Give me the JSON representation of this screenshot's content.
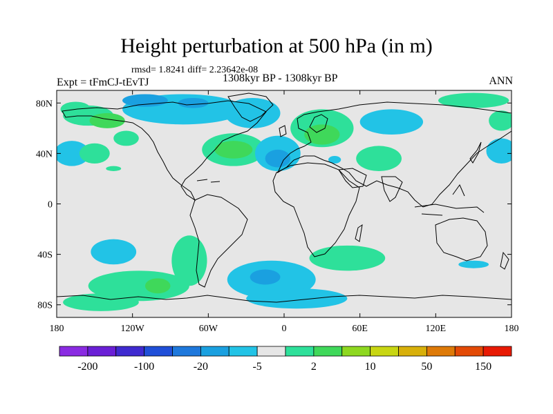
{
  "title": "Height perturbation at 500 hPa (in m)",
  "stats": "rmsd= 1.8241 diff= 2.23642e-08",
  "experiment": "Expt = tFmCJ-tEvTJ",
  "period": "1308kyr BP - 1308kyr BP",
  "season": "ANN",
  "x_ticks": [
    {
      "lon": -180,
      "label": "180"
    },
    {
      "lon": -120,
      "label": "120W"
    },
    {
      "lon": -60,
      "label": "60W"
    },
    {
      "lon": 0,
      "label": "0"
    },
    {
      "lon": 60,
      "label": "60E"
    },
    {
      "lon": 120,
      "label": "120E"
    },
    {
      "lon": 180,
      "label": "180"
    }
  ],
  "y_ticks": [
    {
      "lat": 80,
      "label": "80N"
    },
    {
      "lat": 40,
      "label": "40N"
    },
    {
      "lat": 0,
      "label": "0"
    },
    {
      "lat": -40,
      "label": "40S"
    },
    {
      "lat": -80,
      "label": "80S"
    }
  ],
  "colorbar": {
    "colors": [
      "#8a2be2",
      "#6a1fd6",
      "#3f2ad0",
      "#1f4fd8",
      "#1e78dc",
      "#1aa0e0",
      "#22c3e6",
      "#e6e6e6",
      "#2ee09a",
      "#3fd85a",
      "#8ed820",
      "#c8d612",
      "#d8b00a",
      "#de7a08",
      "#e34a06",
      "#e81a04"
    ],
    "labels": [
      {
        "after_box": 1,
        "text": "-200"
      },
      {
        "after_box": 3,
        "text": "-100"
      },
      {
        "after_box": 5,
        "text": "-20"
      },
      {
        "after_box": 7,
        "text": "-5"
      },
      {
        "after_box": 9,
        "text": "2"
      },
      {
        "after_box": 11,
        "text": "10"
      },
      {
        "after_box": 13,
        "text": "50"
      },
      {
        "after_box": 15,
        "text": "150"
      }
    ]
  },
  "anomaly_cells": [
    {
      "lon": -165,
      "lat": 75,
      "rx": 12,
      "ry": 6,
      "level": "pos"
    },
    {
      "lon": -155,
      "lat": 70,
      "rx": 20,
      "ry": 8,
      "level": "pos"
    },
    {
      "lon": -140,
      "lat": 66,
      "rx": 14,
      "ry": 6,
      "level": "pos2"
    },
    {
      "lon": -168,
      "lat": 40,
      "rx": 14,
      "ry": 10,
      "level": "neg"
    },
    {
      "lon": -150,
      "lat": 40,
      "rx": 12,
      "ry": 8,
      "level": "pos"
    },
    {
      "lon": -135,
      "lat": 28,
      "rx": 6,
      "ry": 2,
      "level": "pos"
    },
    {
      "lon": -125,
      "lat": 52,
      "rx": 10,
      "ry": 6,
      "level": "pos"
    },
    {
      "lon": -80,
      "lat": 75,
      "rx": 48,
      "ry": 12,
      "level": "neg"
    },
    {
      "lon": -110,
      "lat": 82,
      "rx": 18,
      "ry": 5,
      "level": "neg2"
    },
    {
      "lon": -72,
      "lat": 80,
      "rx": 12,
      "ry": 4,
      "level": "neg2"
    },
    {
      "lon": -25,
      "lat": 72,
      "rx": 22,
      "ry": 12,
      "level": "neg"
    },
    {
      "lon": -40,
      "lat": 43,
      "rx": 25,
      "ry": 13,
      "level": "pos"
    },
    {
      "lon": -40,
      "lat": 43,
      "rx": 15,
      "ry": 7,
      "level": "pos2"
    },
    {
      "lon": -5,
      "lat": 40,
      "rx": 18,
      "ry": 14,
      "level": "neg"
    },
    {
      "lon": -5,
      "lat": 36,
      "rx": 10,
      "ry": 7,
      "level": "neg2"
    },
    {
      "lon": 30,
      "lat": 60,
      "rx": 25,
      "ry": 15,
      "level": "pos"
    },
    {
      "lon": 30,
      "lat": 55,
      "rx": 14,
      "ry": 8,
      "level": "pos2"
    },
    {
      "lon": 40,
      "lat": 35,
      "rx": 5,
      "ry": 3,
      "level": "neg"
    },
    {
      "lon": 85,
      "lat": 65,
      "rx": 25,
      "ry": 10,
      "level": "neg"
    },
    {
      "lon": 75,
      "lat": 36,
      "rx": 18,
      "ry": 10,
      "level": "pos"
    },
    {
      "lon": 150,
      "lat": 82,
      "rx": 28,
      "ry": 6,
      "level": "pos"
    },
    {
      "lon": 172,
      "lat": 66,
      "rx": 10,
      "ry": 8,
      "level": "pos"
    },
    {
      "lon": 172,
      "lat": 42,
      "rx": 12,
      "ry": 10,
      "level": "neg"
    },
    {
      "lon": -135,
      "lat": -38,
      "rx": 18,
      "ry": 10,
      "level": "neg"
    },
    {
      "lon": -115,
      "lat": -65,
      "rx": 40,
      "ry": 12,
      "level": "pos"
    },
    {
      "lon": -75,
      "lat": -45,
      "rx": 14,
      "ry": 20,
      "level": "pos"
    },
    {
      "lon": -100,
      "lat": -65,
      "rx": 10,
      "ry": 6,
      "level": "pos2"
    },
    {
      "lon": -145,
      "lat": -78,
      "rx": 30,
      "ry": 7,
      "level": "pos"
    },
    {
      "lon": -10,
      "lat": -60,
      "rx": 35,
      "ry": 15,
      "level": "neg"
    },
    {
      "lon": -15,
      "lat": -58,
      "rx": 12,
      "ry": 6,
      "level": "neg2"
    },
    {
      "lon": 10,
      "lat": -75,
      "rx": 40,
      "ry": 8,
      "level": "neg"
    },
    {
      "lon": 50,
      "lat": -43,
      "rx": 30,
      "ry": 10,
      "level": "pos"
    },
    {
      "lon": 150,
      "lat": -48,
      "rx": 12,
      "ry": 3,
      "level": "neg"
    }
  ],
  "level_colors": {
    "neg": "#22c3e6",
    "neg2": "#1aa0e0",
    "pos": "#2ee09a",
    "pos2": "#3fd85a"
  }
}
